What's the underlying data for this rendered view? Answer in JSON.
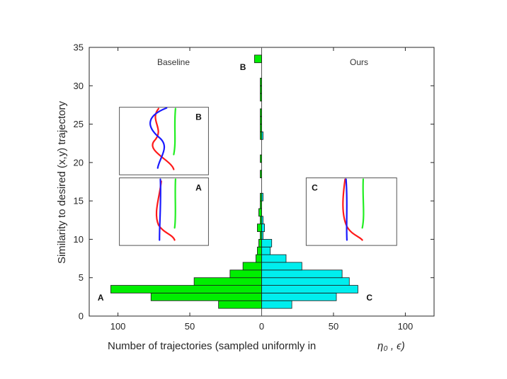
{
  "chart_data": {
    "type": "bar",
    "orientation": "horizontal-back-to-back",
    "xlabel": "Number of trajectories (sampled uniformly in",
    "xlabel_math": "η₀ , ϵ)",
    "ylabel": "Similarity to desired (x,y) trajectory",
    "xlim": [
      -120,
      120
    ],
    "ylim": [
      0,
      35
    ],
    "x_ticks": [
      -100,
      -50,
      0,
      50,
      100
    ],
    "x_tick_labels": [
      "100",
      "50",
      "0",
      "50",
      "100"
    ],
    "y_ticks": [
      0,
      5,
      10,
      15,
      20,
      25,
      30,
      35
    ],
    "y_tick_labels": [
      "0",
      "5",
      "10",
      "15",
      "20",
      "25",
      "30",
      "35"
    ],
    "bin_width": 1,
    "bin_centers": [
      1.5,
      2.5,
      3.5,
      4.5,
      5.5,
      6.5,
      7.5,
      8.5,
      9.5,
      10.5,
      11.5,
      12.5,
      13.5,
      14.5,
      15.5,
      16.5,
      17.5,
      18.5,
      19.5,
      20.5,
      21.5,
      22.5,
      23.5,
      24.5,
      25.5,
      26.5,
      27.5,
      28.5,
      29.5,
      30.5,
      31.5,
      32.5,
      33.5
    ],
    "series": [
      {
        "name": "Baseline",
        "side": "left",
        "color": "#00ee00",
        "values": [
          30,
          77,
          105,
          47,
          22,
          13,
          4,
          3,
          2,
          1,
          3,
          1,
          2,
          1,
          1,
          0,
          0,
          1,
          0,
          1,
          0,
          0,
          1,
          1,
          1,
          1,
          0,
          1,
          1,
          1,
          0,
          0,
          5
        ]
      },
      {
        "name": "Ours",
        "side": "right",
        "color": "#00eeee",
        "values": [
          21,
          52,
          67,
          61,
          56,
          28,
          17,
          6,
          7,
          1,
          2,
          1,
          0,
          0,
          1,
          0,
          0,
          0,
          0,
          0,
          0,
          0,
          1,
          0,
          0,
          0,
          0,
          0,
          0,
          0,
          0,
          0,
          0
        ]
      }
    ],
    "panel_labels": [
      "Baseline",
      "Ours"
    ],
    "markers": [
      {
        "label": "A",
        "x": -112,
        "y": 2.5
      },
      {
        "label": "B",
        "x": -13,
        "y": 32.5
      },
      {
        "label": "C",
        "x": 75,
        "y": 2.5
      }
    ],
    "insets": [
      {
        "label": "B",
        "x": [
          -99,
          -37
        ],
        "y": [
          18.4,
          27.2
        ]
      },
      {
        "label": "A",
        "x": [
          -99,
          -37
        ],
        "y": [
          9.2,
          18.0
        ]
      },
      {
        "label": "C",
        "x": [
          31,
          94
        ],
        "y": [
          9.2,
          18.0
        ]
      }
    ],
    "trajectory_colors": {
      "blue": "#1a1aff",
      "red": "#ff1a1a",
      "green": "#22ee22"
    }
  }
}
